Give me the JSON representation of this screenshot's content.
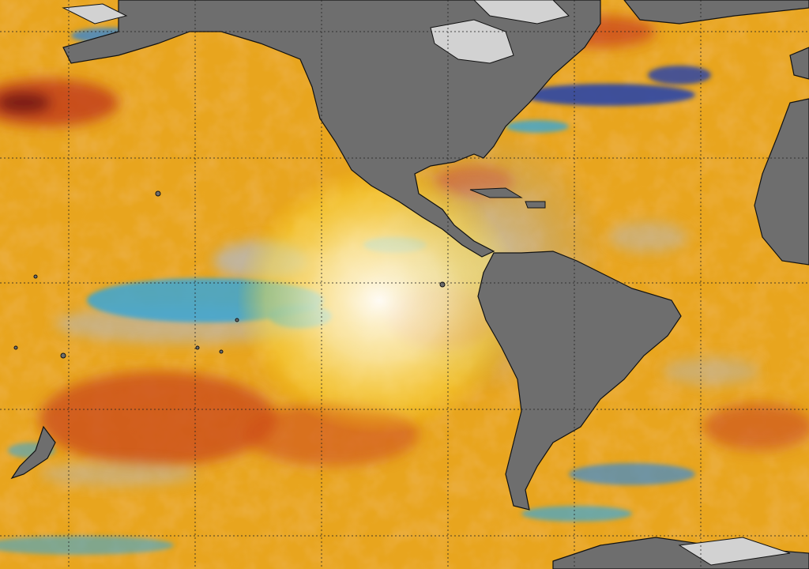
{
  "map": {
    "type": "sea-surface-temperature-anomaly",
    "colors": {
      "land": "#6e6e6e",
      "ice": "#cfcfcf",
      "ocean_base": "#e8a51e",
      "warm": "#d9561a",
      "hot": "#a8241a",
      "neutral": "#b4b4b4",
      "cool": "#3aa9d9",
      "cold": "#1f4fb0",
      "glow": "#ffffff",
      "grid": "#222222",
      "coast": "#111111"
    }
  }
}
